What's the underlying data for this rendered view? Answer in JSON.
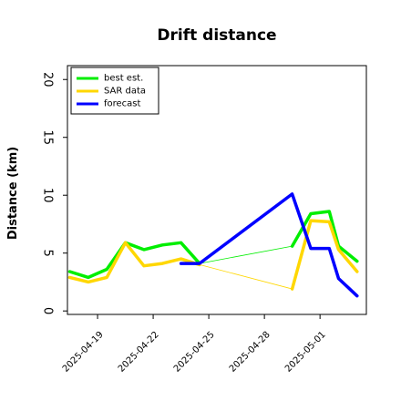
{
  "chart_data": {
    "type": "line",
    "title": "Drift distance",
    "xlabel": "",
    "ylabel": "Distance (km)",
    "ylim": [
      -0.3,
      21.2
    ],
    "xlim": [
      "2025-04-17 09:00",
      "2025-05-03 12:00"
    ],
    "yticks": [
      0,
      5,
      10,
      15,
      20
    ],
    "xticks": [
      {
        "date": "2025-04-19",
        "label": "2025-04-19"
      },
      {
        "date": "2025-04-22",
        "label": "2025-04-22"
      },
      {
        "date": "2025-04-25",
        "label": "2025-04-25"
      },
      {
        "date": "2025-04-28",
        "label": "2025-04-28"
      },
      {
        "date": "2025-05-01",
        "label": "2025-05-01"
      }
    ],
    "legend_position": "top-left",
    "grid": false,
    "series": [
      {
        "name": "best est.",
        "color": "#00ee00",
        "points": [
          [
            "2025-04-17 12:00",
            3.4
          ],
          [
            "2025-04-18 12:00",
            2.9
          ],
          [
            "2025-04-19 12:00",
            3.6
          ],
          [
            "2025-04-20 12:00",
            5.9
          ],
          [
            "2025-04-21 12:00",
            5.3
          ],
          [
            "2025-04-22 12:00",
            5.7
          ],
          [
            "2025-04-23 12:00",
            5.9
          ],
          [
            "2025-04-24 12:00",
            4.1
          ]
        ]
      },
      {
        "name": "SAR data",
        "color": "#ffd700",
        "points": [
          [
            "2025-04-17 12:00",
            2.9
          ],
          [
            "2025-04-18 12:00",
            2.5
          ],
          [
            "2025-04-19 12:00",
            2.9
          ],
          [
            "2025-04-20 12:00",
            5.9
          ],
          [
            "2025-04-21 12:00",
            3.9
          ],
          [
            "2025-04-22 12:00",
            4.1
          ],
          [
            "2025-04-23 12:00",
            4.5
          ],
          [
            "2025-04-24 12:00",
            4.0
          ]
        ]
      },
      {
        "name": "best est.",
        "color": "#00ee00",
        "points": [
          [
            "2025-04-29 12:00",
            5.6
          ],
          [
            "2025-04-30 12:00",
            8.4
          ],
          [
            "2025-05-01 12:00",
            8.6
          ],
          [
            "2025-05-02 00:00",
            5.6
          ],
          [
            "2025-05-03 00:00",
            4.3
          ]
        ]
      },
      {
        "name": "SAR data",
        "color": "#ffd700",
        "points": [
          [
            "2025-04-29 12:00",
            1.9
          ],
          [
            "2025-04-30 12:00",
            7.8
          ],
          [
            "2025-05-01 12:00",
            7.7
          ],
          [
            "2025-05-02 00:00",
            5.3
          ],
          [
            "2025-05-03 00:00",
            3.4
          ]
        ]
      },
      {
        "name": "forecast",
        "color": "#0000ff",
        "points": [
          [
            "2025-04-23 12:00",
            4.1
          ],
          [
            "2025-04-24 12:00",
            4.1
          ],
          [
            "2025-04-29 12:00",
            10.1
          ],
          [
            "2025-04-30 12:00",
            5.4
          ],
          [
            "2025-05-01 12:00",
            5.4
          ],
          [
            "2025-05-02 00:00",
            2.8
          ],
          [
            "2025-05-03 00:00",
            1.3
          ]
        ]
      }
    ],
    "connectors": [
      {
        "color": "#00ee00",
        "from": [
          "2025-04-24 12:00",
          4.1
        ],
        "to": [
          "2025-04-29 12:00",
          5.6
        ]
      },
      {
        "color": "#ffd700",
        "from": [
          "2025-04-24 12:00",
          4.0
        ],
        "to": [
          "2025-04-29 12:00",
          1.9
        ]
      },
      {
        "color": "#0000ff",
        "from": [
          "2025-04-24 12:00",
          4.1
        ],
        "to": [
          "2025-04-29 12:00",
          10.1
        ]
      }
    ],
    "legend": [
      {
        "label": "best est.",
        "color": "#00ee00"
      },
      {
        "label": "SAR data",
        "color": "#ffd700"
      },
      {
        "label": "forecast",
        "color": "#0000ff"
      }
    ]
  }
}
